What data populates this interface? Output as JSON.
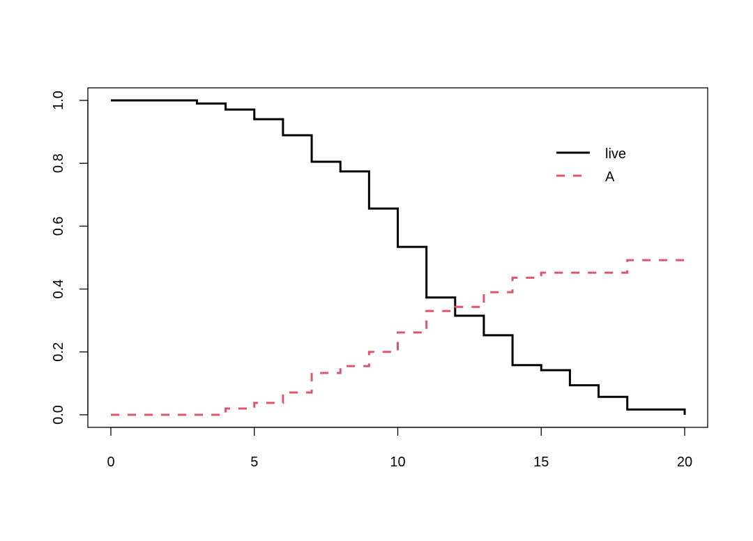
{
  "chart_data": {
    "type": "line",
    "title": "",
    "xlabel": "",
    "ylabel": "",
    "xlim": [
      0,
      20
    ],
    "ylim": [
      0,
      1
    ],
    "grid": false,
    "x_ticks": [
      0,
      5,
      10,
      15,
      20
    ],
    "x_tick_labels": [
      "0",
      "5",
      "10",
      "15",
      "20"
    ],
    "y_ticks": [
      0,
      0.2,
      0.4,
      0.6,
      0.8,
      1.0
    ],
    "y_tick_labels": [
      "0.0",
      "0.2",
      "0.4",
      "0.6",
      "0.8",
      "1.0"
    ],
    "legend": {
      "placement": "top-right",
      "entries": [
        "live",
        "A"
      ]
    },
    "step": true,
    "series": [
      {
        "name": "live",
        "color": "#000000",
        "style": "solid",
        "x": [
          0,
          3,
          4,
          5,
          6,
          7,
          8,
          9,
          10,
          11,
          12,
          13,
          14,
          15,
          16,
          17,
          18,
          20
        ],
        "y": [
          1.0,
          0.99,
          0.971,
          0.94,
          0.889,
          0.805,
          0.774,
          0.656,
          0.534,
          0.373,
          0.315,
          0.253,
          0.158,
          0.142,
          0.094,
          0.057,
          0.017,
          0.0
        ]
      },
      {
        "name": "A",
        "color": "#DF536B",
        "style": "dashed",
        "x": [
          0,
          4,
          5,
          6,
          7,
          8,
          9,
          10,
          11,
          12,
          13,
          14,
          15,
          18,
          20
        ],
        "y": [
          0.0,
          0.02,
          0.038,
          0.071,
          0.133,
          0.155,
          0.2,
          0.262,
          0.33,
          0.343,
          0.39,
          0.436,
          0.452,
          0.492,
          0.492
        ]
      }
    ]
  }
}
